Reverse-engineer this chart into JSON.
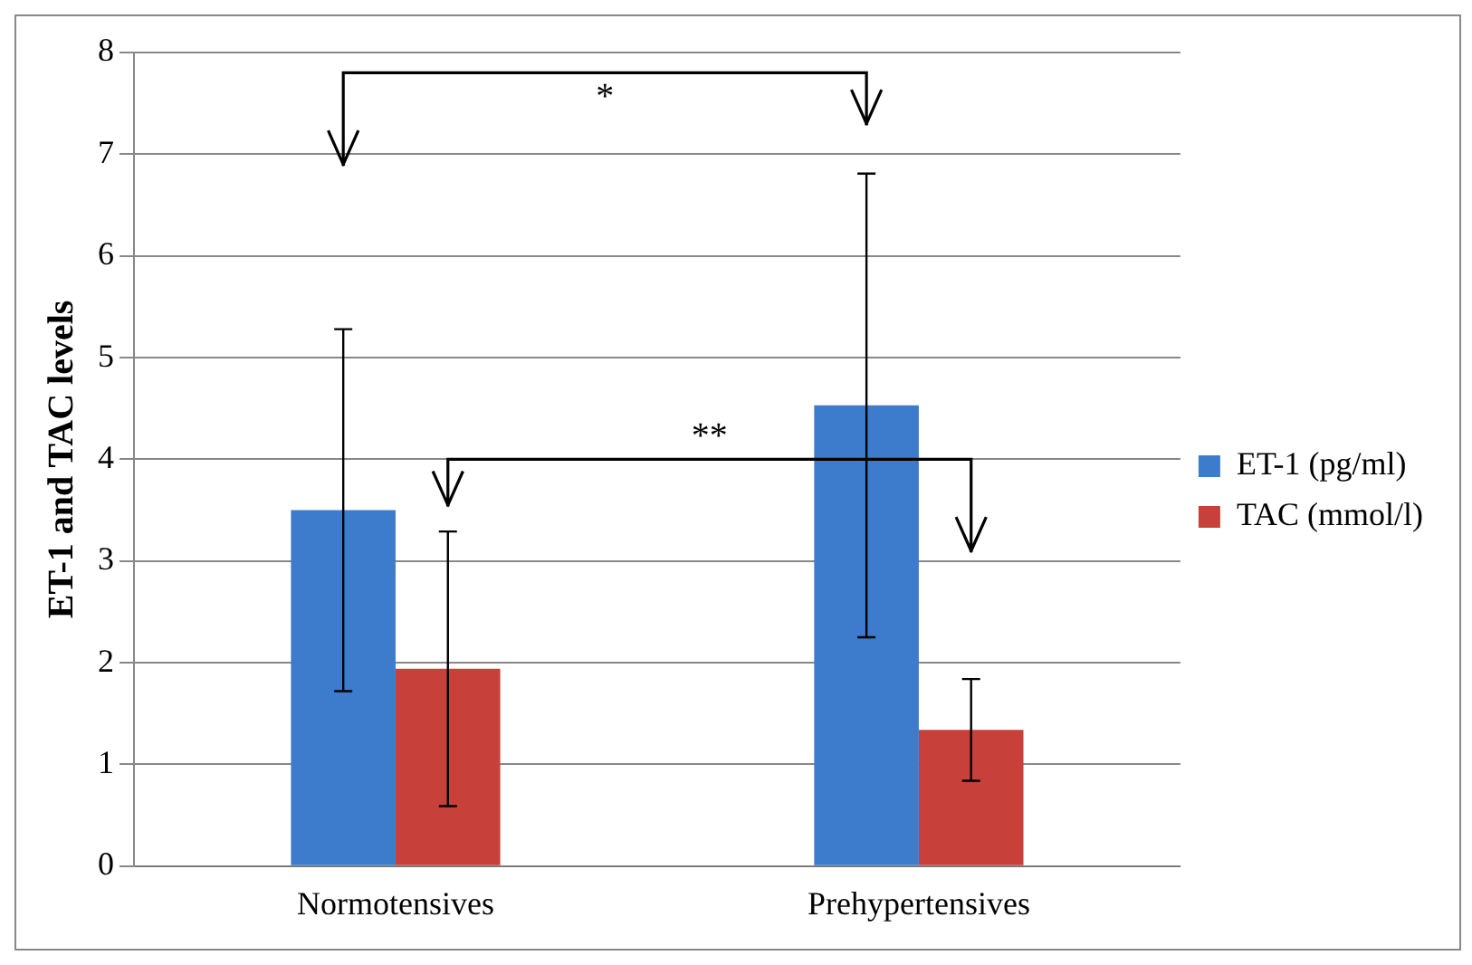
{
  "chart_data": {
    "type": "bar",
    "ylabel": "ET-1 and TAC levels",
    "categories": [
      "Normotensives",
      "Prehypertensives"
    ],
    "series": [
      {
        "name": "ET-1 (pg/ml)",
        "color": "#3d7ccc",
        "values": [
          3.5,
          4.53
        ],
        "errors": [
          1.78,
          2.28
        ]
      },
      {
        "name": "TAC (mmol/l)",
        "color": "#c8403a",
        "values": [
          1.94,
          1.34
        ],
        "errors": [
          1.35,
          0.5
        ]
      }
    ],
    "ylim": [
      0,
      8
    ],
    "yticks": [
      0,
      1,
      2,
      3,
      4,
      5,
      6,
      7,
      8
    ],
    "grid": "y",
    "legend": "right",
    "annotations": [
      "*",
      "**"
    ]
  }
}
